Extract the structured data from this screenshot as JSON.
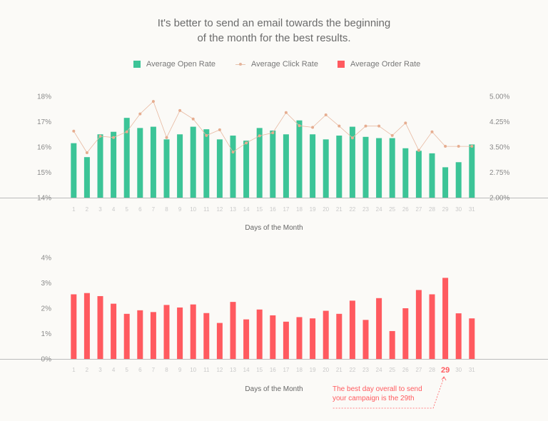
{
  "subtitle": {
    "line1": "It's better to send an email towards the beginning",
    "line2": "of the month for the best results."
  },
  "legend": {
    "open": "Average Open Rate",
    "click": "Average Click Rate",
    "order": "Average Order Rate"
  },
  "colors": {
    "open": "#3cc497",
    "click": "#e8b9a1",
    "order": "#ff5a5f",
    "axis": "#bbbbbb",
    "highlight": "#ff5a5f"
  },
  "chart_data": [
    {
      "type": "bar",
      "categories": [
        "1",
        "2",
        "3",
        "4",
        "5",
        "6",
        "7",
        "8",
        "9",
        "10",
        "11",
        "12",
        "13",
        "14",
        "15",
        "16",
        "17",
        "18",
        "19",
        "20",
        "21",
        "22",
        "23",
        "24",
        "25",
        "26",
        "27",
        "28",
        "29",
        "30",
        "31"
      ],
      "xlabel": "Days of the Month",
      "ylim": [
        14,
        18
      ],
      "yticks": [
        "14%",
        "15%",
        "16%",
        "17%",
        "18%"
      ],
      "y2lim": [
        2.0,
        5.0
      ],
      "y2ticks": [
        "2.00%",
        "2.75%",
        "3.50%",
        "4.25%",
        "5.00%"
      ],
      "series": [
        {
          "name": "Average Open Rate",
          "type": "bar",
          "axis": "left",
          "values": [
            16.15,
            15.6,
            16.5,
            16.6,
            17.15,
            16.75,
            16.8,
            16.3,
            16.5,
            16.8,
            16.7,
            16.3,
            16.45,
            16.25,
            16.75,
            16.65,
            16.5,
            17.05,
            16.5,
            16.3,
            16.45,
            16.8,
            16.4,
            16.35,
            16.35,
            15.95,
            15.85,
            15.75,
            15.2,
            15.4,
            16.1
          ]
        },
        {
          "name": "Average Click Rate",
          "type": "line",
          "axis": "right",
          "values": [
            3.97,
            3.33,
            3.82,
            3.78,
            3.95,
            4.48,
            4.85,
            3.78,
            4.58,
            4.33,
            3.84,
            4.01,
            3.35,
            3.62,
            3.83,
            3.92,
            4.52,
            4.13,
            4.08,
            4.45,
            4.12,
            3.77,
            4.12,
            4.12,
            3.84,
            4.21,
            3.4,
            3.95,
            3.52,
            3.52,
            3.52
          ]
        }
      ]
    },
    {
      "type": "bar",
      "categories": [
        "1",
        "2",
        "3",
        "4",
        "5",
        "6",
        "7",
        "8",
        "9",
        "10",
        "11",
        "12",
        "13",
        "14",
        "15",
        "16",
        "17",
        "18",
        "19",
        "20",
        "21",
        "22",
        "23",
        "24",
        "25",
        "26",
        "27",
        "28",
        "29",
        "30",
        "31"
      ],
      "xlabel": "Days of the Month",
      "ylim": [
        0,
        4
      ],
      "yticks": [
        "0%",
        "1%",
        "2%",
        "3%",
        "4%"
      ],
      "highlight_day": "29",
      "annotation_line1": "The best day overall to send",
      "annotation_line2": "your campaign is the 29th",
      "series": [
        {
          "name": "Average Order Rate",
          "type": "bar",
          "values": [
            2.55,
            2.6,
            2.48,
            2.18,
            1.78,
            1.92,
            1.85,
            2.13,
            2.03,
            2.15,
            1.81,
            1.42,
            2.25,
            1.56,
            1.95,
            1.72,
            1.47,
            1.65,
            1.6,
            1.9,
            1.78,
            2.3,
            1.54,
            2.4,
            1.1,
            2.0,
            2.72,
            2.55,
            3.2,
            1.8,
            1.6
          ]
        }
      ]
    }
  ]
}
